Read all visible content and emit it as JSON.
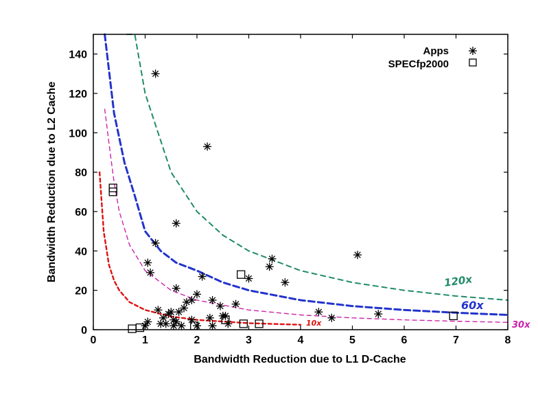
{
  "chart_data": {
    "type": "scatter",
    "title": "",
    "xlabel": "Bandwidth Reduction due to L1 D-Cache",
    "ylabel": "Bandwidth Reduction due to L2 Cache",
    "xlim": [
      0,
      8
    ],
    "ylim": [
      0,
      150
    ],
    "xticks": [
      "0",
      "1",
      "2",
      "3",
      "4",
      "5",
      "6",
      "7",
      "8"
    ],
    "yticks": [
      "0",
      "20",
      "40",
      "60",
      "80",
      "100",
      "120",
      "140"
    ],
    "grid": false,
    "legend_position": "top-right",
    "series": [
      {
        "name": "Apps",
        "marker": "asterisk",
        "color": "#000000",
        "points": [
          [
            1.2,
            130
          ],
          [
            2.2,
            93
          ],
          [
            1.6,
            54
          ],
          [
            1.2,
            44
          ],
          [
            1.05,
            34
          ],
          [
            1.1,
            29
          ],
          [
            3.45,
            36
          ],
          [
            3.4,
            32
          ],
          [
            5.1,
            38
          ],
          [
            3.7,
            24
          ],
          [
            3.0,
            26
          ],
          [
            2.1,
            27
          ],
          [
            1.6,
            21
          ],
          [
            2.3,
            15
          ],
          [
            2.0,
            18
          ],
          [
            1.9,
            15
          ],
          [
            2.45,
            12
          ],
          [
            2.75,
            13
          ],
          [
            1.8,
            14
          ],
          [
            1.75,
            11
          ],
          [
            1.25,
            10
          ],
          [
            1.5,
            9
          ],
          [
            1.65,
            9
          ],
          [
            1.45,
            8
          ],
          [
            2.5,
            7
          ],
          [
            2.55,
            7
          ],
          [
            2.25,
            6
          ],
          [
            1.35,
            6
          ],
          [
            1.9,
            5
          ],
          [
            1.55,
            5
          ],
          [
            1.6,
            4
          ],
          [
            1.4,
            3
          ],
          [
            1.3,
            3
          ],
          [
            1.55,
            2
          ],
          [
            1.7,
            2
          ],
          [
            1.05,
            4
          ],
          [
            1.0,
            2
          ],
          [
            2.3,
            2
          ],
          [
            2.0,
            2
          ],
          [
            2.6,
            3
          ],
          [
            4.35,
            9
          ],
          [
            4.6,
            6
          ],
          [
            5.5,
            8
          ]
        ]
      },
      {
        "name": "SPECfp2000",
        "marker": "square",
        "color": "#000000",
        "points": [
          [
            0.38,
            72
          ],
          [
            0.38,
            70
          ],
          [
            2.85,
            28
          ],
          [
            0.75,
            0.5
          ],
          [
            0.9,
            1
          ],
          [
            1.95,
            2
          ],
          [
            2.55,
            5
          ],
          [
            2.9,
            3
          ],
          [
            3.2,
            3
          ],
          [
            6.95,
            7
          ]
        ]
      }
    ],
    "curves": [
      {
        "label": "10x",
        "color": "#dd1111",
        "points": [
          [
            0.12,
            80
          ],
          [
            0.2,
            50
          ],
          [
            0.3,
            33
          ],
          [
            0.4,
            25
          ],
          [
            0.5,
            20
          ],
          [
            0.7,
            14
          ],
          [
            1.0,
            10
          ],
          [
            1.5,
            6.7
          ],
          [
            2.0,
            5
          ],
          [
            3.0,
            3.3
          ],
          [
            4.0,
            2.5
          ]
        ]
      },
      {
        "label": "30x",
        "color": "#cc22aa",
        "points": [
          [
            0.22,
            112
          ],
          [
            0.3,
            95
          ],
          [
            0.4,
            75
          ],
          [
            0.5,
            60
          ],
          [
            0.7,
            43
          ],
          [
            1.0,
            30
          ],
          [
            1.5,
            20
          ],
          [
            2.0,
            15
          ],
          [
            3.0,
            10
          ],
          [
            4.0,
            7.5
          ],
          [
            5.0,
            6
          ],
          [
            6.0,
            5
          ],
          [
            7.0,
            4.3
          ],
          [
            8.0,
            3.75
          ]
        ]
      },
      {
        "label": "60x",
        "color": "#2233cc",
        "points": [
          [
            0.22,
            150
          ],
          [
            0.4,
            110
          ],
          [
            0.6,
            85
          ],
          [
            0.8,
            68
          ],
          [
            1.0,
            50
          ],
          [
            1.3,
            40
          ],
          [
            1.6,
            34
          ],
          [
            2.0,
            30
          ],
          [
            2.5,
            24
          ],
          [
            3.0,
            20
          ],
          [
            4.0,
            15
          ],
          [
            5.0,
            12
          ],
          [
            6.0,
            10
          ],
          [
            7.0,
            8.6
          ],
          [
            8.0,
            7.5
          ]
        ]
      },
      {
        "label": "120x",
        "color": "#1f8a6a",
        "points": [
          [
            0.65,
            150
          ],
          [
            0.8,
            150
          ],
          [
            1.0,
            120
          ],
          [
            1.5,
            80
          ],
          [
            2.0,
            60
          ],
          [
            2.5,
            48
          ],
          [
            3.0,
            40
          ],
          [
            4.0,
            30
          ],
          [
            5.0,
            24
          ],
          [
            6.0,
            20
          ],
          [
            7.0,
            17.1
          ],
          [
            8.0,
            15
          ]
        ]
      }
    ]
  }
}
